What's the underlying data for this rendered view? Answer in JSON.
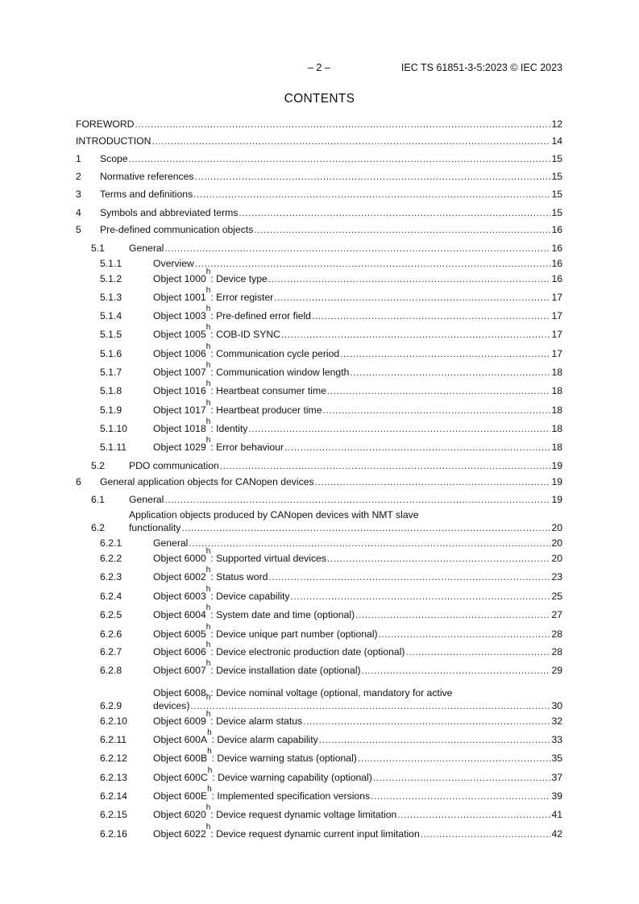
{
  "header": {
    "page_number": "– 2 –",
    "document_id": "IEC TS 61851-3-5:2023 © IEC 2023"
  },
  "title": "CONTENTS",
  "entries": [
    {
      "num": "",
      "pre": "FOREWORD",
      "sub": "",
      "post": "",
      "page": "12",
      "level": 0
    },
    {
      "num": "",
      "pre": "INTRODUCTION",
      "sub": "",
      "post": "",
      "page": "14",
      "level": 0
    },
    {
      "num": "1",
      "pre": "Scope",
      "sub": "",
      "post": "",
      "page": "15",
      "level": 1
    },
    {
      "num": "2",
      "pre": "Normative references",
      "sub": "",
      "post": "",
      "page": "15",
      "level": 1
    },
    {
      "num": "3",
      "pre": "Terms and definitions",
      "sub": "",
      "post": "",
      "page": "15",
      "level": 1
    },
    {
      "num": "4",
      "pre": "Symbols and abbreviated terms",
      "sub": "",
      "post": "",
      "page": "15",
      "level": 1
    },
    {
      "num": "5",
      "pre": "Pre-defined communication objects",
      "sub": "",
      "post": "",
      "page": "16",
      "level": 1
    },
    {
      "num": "5.1",
      "pre": "General",
      "sub": "",
      "post": "",
      "page": "16",
      "level": 2
    },
    {
      "num": "5.1.1",
      "pre": "Overview",
      "sub": "",
      "post": "",
      "page": "16",
      "level": 3
    },
    {
      "num": "5.1.2",
      "pre": "Object 1000",
      "sub": "h",
      "post": ": Device type",
      "page": "16",
      "level": 3
    },
    {
      "num": "5.1.3",
      "pre": "Object 1001",
      "sub": "h",
      "post": ": Error register",
      "page": "17",
      "level": 3
    },
    {
      "num": "5.1.4",
      "pre": "Object 1003",
      "sub": "h",
      "post": ": Pre-defined error field",
      "page": "17",
      "level": 3
    },
    {
      "num": "5.1.5",
      "pre": "Object 1005",
      "sub": "h",
      "post": ": COB-ID SYNC",
      "page": "17",
      "level": 3
    },
    {
      "num": "5.1.6",
      "pre": "Object 1006",
      "sub": "h",
      "post": ": Communication cycle period",
      "page": "17",
      "level": 3
    },
    {
      "num": "5.1.7",
      "pre": "Object 1007",
      "sub": "h",
      "post": ": Communication window length",
      "page": "18",
      "level": 3
    },
    {
      "num": "5.1.8",
      "pre": "Object 1016",
      "sub": "h",
      "post": ": Heartbeat consumer time",
      "page": "18",
      "level": 3
    },
    {
      "num": "5.1.9",
      "pre": "Object 1017",
      "sub": "h",
      "post": ": Heartbeat producer time",
      "page": "18",
      "level": 3
    },
    {
      "num": "5.1.10",
      "pre": "Object 1018",
      "sub": "h",
      "post": ": Identity",
      "page": "18",
      "level": 3
    },
    {
      "num": "5.1.11",
      "pre": "Object 1029",
      "sub": "h",
      "post": ": Error behaviour",
      "page": "18",
      "level": 3
    },
    {
      "num": "5.2",
      "pre": "PDO communication",
      "sub": "",
      "post": "",
      "page": "19",
      "level": 2
    },
    {
      "num": "6",
      "pre": "General application objects for CANopen devices",
      "sub": "",
      "post": "",
      "page": "19",
      "level": 1
    },
    {
      "num": "6.1",
      "pre": "General",
      "sub": "",
      "post": "",
      "page": "19",
      "level": 2
    },
    {
      "num": "6.2",
      "line1": "Application objects produced by CANopen devices with NMT slave",
      "pre": "functionality",
      "sub": "",
      "post": "",
      "page": "20",
      "level": 2
    },
    {
      "num": "6.2.1",
      "pre": "General",
      "sub": "",
      "post": "",
      "page": "20",
      "level": 3
    },
    {
      "num": "6.2.2",
      "pre": "Object 6000",
      "sub": "h",
      "post": ": Supported virtual devices",
      "page": "20",
      "level": 3
    },
    {
      "num": "6.2.3",
      "pre": "Object 6002",
      "sub": "h",
      "post": ": Status word",
      "page": "23",
      "level": 3
    },
    {
      "num": "6.2.4",
      "pre": "Object 6003",
      "sub": "h",
      "post": ": Device capability",
      "page": "25",
      "level": 3
    },
    {
      "num": "6.2.5",
      "pre": "Object 6004",
      "sub": "h",
      "post": ": System date and time (optional)",
      "page": "27",
      "level": 3
    },
    {
      "num": "6.2.6",
      "pre": "Object 6005",
      "sub": "h",
      "post": ": Device unique part number (optional)",
      "page": "28",
      "level": 3
    },
    {
      "num": "6.2.7",
      "pre": "Object 6006",
      "sub": "h",
      "post": ": Device electronic production date (optional)",
      "page": "28",
      "level": 3
    },
    {
      "num": "6.2.8",
      "pre": "Object 6007",
      "sub": "h",
      "post": ": Device installation date (optional)",
      "page": "29",
      "level": 3
    },
    {
      "num": "6.2.9",
      "line1_pre": "Object 6008",
      "line1_sub": "h",
      "line1_post": ": Device nominal voltage (optional, mandatory for active",
      "pre": "devices)",
      "sub": "",
      "post": "",
      "page": "30",
      "level": 3
    },
    {
      "num": "6.2.10",
      "pre": "Object 6009",
      "sub": "h",
      "post": ": Device alarm status",
      "page": "32",
      "level": 3
    },
    {
      "num": "6.2.11",
      "pre": "Object 600A",
      "sub": "h",
      "post": ": Device alarm capability",
      "page": "33",
      "level": 3
    },
    {
      "num": "6.2.12",
      "pre": "Object 600B",
      "sub": "h",
      "post": ": Device warning status (optional)",
      "page": "35",
      "level": 3
    },
    {
      "num": "6.2.13",
      "pre": "Object 600C",
      "sub": "h",
      "post": ": Device warning capability (optional)",
      "page": "37",
      "level": 3
    },
    {
      "num": "6.2.14",
      "pre": "Object 600E",
      "sub": "h",
      "post": ": Implemented specification versions",
      "page": "39",
      "level": 3
    },
    {
      "num": "6.2.15",
      "pre": "Object 6020",
      "sub": "h",
      "post": ": Device request dynamic voltage limitation",
      "page": "41",
      "level": 3
    },
    {
      "num": "6.2.16",
      "pre": "Object 6022",
      "sub": "h",
      "post": ": Device request dynamic current input limitation",
      "page": "42",
      "level": 3
    }
  ]
}
